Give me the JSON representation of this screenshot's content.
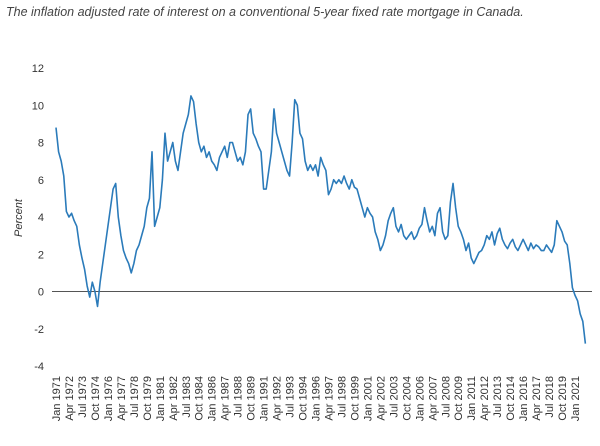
{
  "chart_data": {
    "type": "line",
    "title": "The inflation adjusted rate of interest on a conventional 5-year fixed rate mortgage in Canada.",
    "y_label": "Percent",
    "ylim": [
      -4,
      12
    ],
    "yticks": [
      -4,
      -2,
      0,
      2,
      4,
      6,
      8,
      10,
      12
    ],
    "zero_line": true,
    "categories": [
      "Jan 1971",
      null,
      null,
      null,
      null,
      "Apr 1972",
      null,
      null,
      null,
      null,
      "Jul 1973",
      null,
      null,
      null,
      null,
      "Oct 1974",
      null,
      null,
      null,
      null,
      "Jan 1976",
      null,
      null,
      null,
      null,
      "Apr 1977",
      null,
      null,
      null,
      null,
      "Jul 1978",
      null,
      null,
      null,
      null,
      "Oct 1979",
      null,
      null,
      null,
      null,
      "Jan 1981",
      null,
      null,
      null,
      null,
      "Apr 1982",
      null,
      null,
      null,
      null,
      "Jul 1983",
      null,
      null,
      null,
      null,
      "Oct 1984",
      null,
      null,
      null,
      null,
      "Jan 1986",
      null,
      null,
      null,
      null,
      "Apr 1987",
      null,
      null,
      null,
      null,
      "Jul 1988",
      null,
      null,
      null,
      null,
      "Oct 1989",
      null,
      null,
      null,
      null,
      "Jan 1991",
      null,
      null,
      null,
      null,
      "Apr 1992",
      null,
      null,
      null,
      null,
      "Jul 1993",
      null,
      null,
      null,
      null,
      "Oct 1994",
      null,
      null,
      null,
      null,
      "Jan 1996",
      null,
      null,
      null,
      null,
      "Apr 1997",
      null,
      null,
      null,
      null,
      "Jul 1998",
      null,
      null,
      null,
      null,
      "Oct 1999",
      null,
      null,
      null,
      null,
      "Jan 2001",
      null,
      null,
      null,
      null,
      "Apr 2002",
      null,
      null,
      null,
      null,
      "Jul 2003",
      null,
      null,
      null,
      null,
      "Oct 2004",
      null,
      null,
      null,
      null,
      "Jan 2006",
      null,
      null,
      null,
      null,
      "Apr 2007",
      null,
      null,
      null,
      null,
      "Jul 2008",
      null,
      null,
      null,
      null,
      "Oct 2009",
      null,
      null,
      null,
      null,
      "Jan 2011",
      null,
      null,
      null,
      null,
      "Apr 2012",
      null,
      null,
      null,
      null,
      "Jul 2013",
      null,
      null,
      null,
      null,
      "Oct 2014",
      null,
      null,
      null,
      null,
      "Jan 2016",
      null,
      null,
      null,
      null,
      "Apr 2017",
      null,
      null,
      null,
      null,
      "Jul 2018",
      null,
      null,
      null,
      null,
      "Oct 2019",
      null,
      null,
      null,
      null,
      "Jan 2021",
      null,
      null,
      null,
      null
    ],
    "series": [
      {
        "color": "#2b7bba",
        "values": [
          8.8,
          7.5,
          7,
          6.2,
          4.3,
          4,
          4.2,
          3.8,
          3.5,
          2.5,
          1.8,
          1.2,
          0.3,
          -0.3,
          0.5,
          0,
          -0.8,
          0.5,
          1.5,
          2.5,
          3.5,
          4.5,
          5.5,
          5.8,
          4,
          3,
          2.2,
          1.8,
          1.5,
          1,
          1.5,
          2.2,
          2.5,
          3,
          3.5,
          4.5,
          5,
          7.5,
          3.5,
          4,
          4.5,
          6,
          8.5,
          7,
          7.5,
          8,
          7,
          6.5,
          7.5,
          8.5,
          9,
          9.5,
          10.5,
          10.2,
          9,
          8,
          7.5,
          7.8,
          7.2,
          7.5,
          7,
          6.8,
          6.5,
          7.2,
          7.5,
          7.8,
          7.2,
          8,
          8,
          7.5,
          7,
          7.2,
          6.8,
          7.5,
          9.5,
          9.8,
          8.5,
          8.2,
          7.8,
          7.5,
          5.5,
          5.5,
          6.5,
          7.5,
          9.8,
          8.5,
          8,
          7.5,
          7,
          6.5,
          6.2,
          8,
          10.3,
          10,
          8.5,
          8.2,
          7,
          6.5,
          6.8,
          6.5,
          6.8,
          6.2,
          7.2,
          6.8,
          6.5,
          5.2,
          5.5,
          6,
          5.8,
          6,
          5.8,
          6.2,
          5.8,
          5.5,
          6,
          5.6,
          5.5,
          5,
          4.5,
          4,
          4.5,
          4.2,
          4,
          3.2,
          2.8,
          2.2,
          2.5,
          3,
          3.8,
          4.2,
          4.5,
          3.5,
          3.2,
          3.6,
          3,
          2.8,
          3,
          3.2,
          2.8,
          3,
          3.4,
          3.6,
          4.5,
          3.8,
          3.2,
          3.5,
          3,
          4.2,
          4.5,
          3.2,
          2.8,
          3,
          4.8,
          5.8,
          4.5,
          3.5,
          3.2,
          2.8,
          2.2,
          2.6,
          1.8,
          1.5,
          1.8,
          2.1,
          2.2,
          2.5,
          3,
          2.8,
          3.2,
          2.5,
          3.1,
          3.4,
          2.8,
          2.5,
          2.3,
          2.6,
          2.8,
          2.4,
          2.2,
          2.5,
          2.8,
          2.5,
          2.2,
          2.6,
          2.3,
          2.5,
          2.4,
          2.2,
          2.2,
          2.5,
          2.3,
          2.1,
          2.5,
          3.8,
          3.5,
          3.2,
          2.7,
          2.5,
          1.5,
          0.2,
          -0.2,
          -0.5,
          -1.2,
          -1.6,
          -2.8
        ]
      }
    ]
  }
}
